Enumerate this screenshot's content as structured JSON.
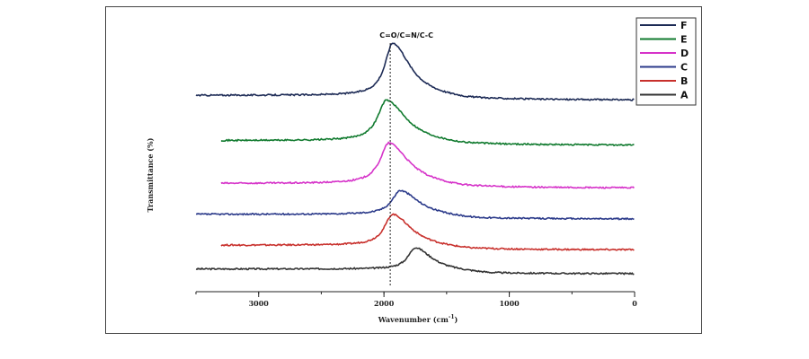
{
  "chart_data": {
    "type": "line",
    "xlabel_main": "Wavenumber (cm",
    "xlabel_sup": "-1",
    "xlabel_tail": ")",
    "ylabel": "Transmittance (%)",
    "annotation": "C=O/C=N/C-C",
    "reference_line_x": 1950,
    "xlim": [
      3500,
      0
    ],
    "x_reversed": true,
    "xticks": [
      3000,
      2000,
      1000,
      0
    ],
    "xtick_labels": [
      "3000",
      "2000",
      "1000",
      "0"
    ],
    "grid": false,
    "legend_position": "top-right",
    "legend_order": [
      "F",
      "E",
      "D",
      "C",
      "B",
      "A"
    ],
    "series": [
      {
        "name": "A",
        "color": "#333333",
        "x_start": 3500,
        "baseline": 0.02,
        "peak_x": 1750,
        "peak_height": 0.09,
        "peak_width": 70
      },
      {
        "name": "B",
        "color": "#c8302c",
        "x_start": 3300,
        "baseline": 0.12,
        "peak_x": 1930,
        "peak_height": 0.13,
        "peak_width": 80
      },
      {
        "name": "C",
        "color": "#2b3a8a",
        "x_start": 3500,
        "baseline": 0.25,
        "peak_x": 1870,
        "peak_height": 0.1,
        "peak_width": 80
      },
      {
        "name": "D",
        "color": "#d633c9",
        "x_start": 3300,
        "baseline": 0.38,
        "peak_x": 1960,
        "peak_height": 0.17,
        "peak_width": 85
      },
      {
        "name": "E",
        "color": "#107a2e",
        "x_start": 3300,
        "baseline": 0.56,
        "peak_x": 1980,
        "peak_height": 0.17,
        "peak_width": 85
      },
      {
        "name": "F",
        "color": "#1c2a55",
        "x_start": 3500,
        "baseline": 0.75,
        "peak_x": 1930,
        "peak_height": 0.22,
        "peak_width": 75
      }
    ]
  }
}
